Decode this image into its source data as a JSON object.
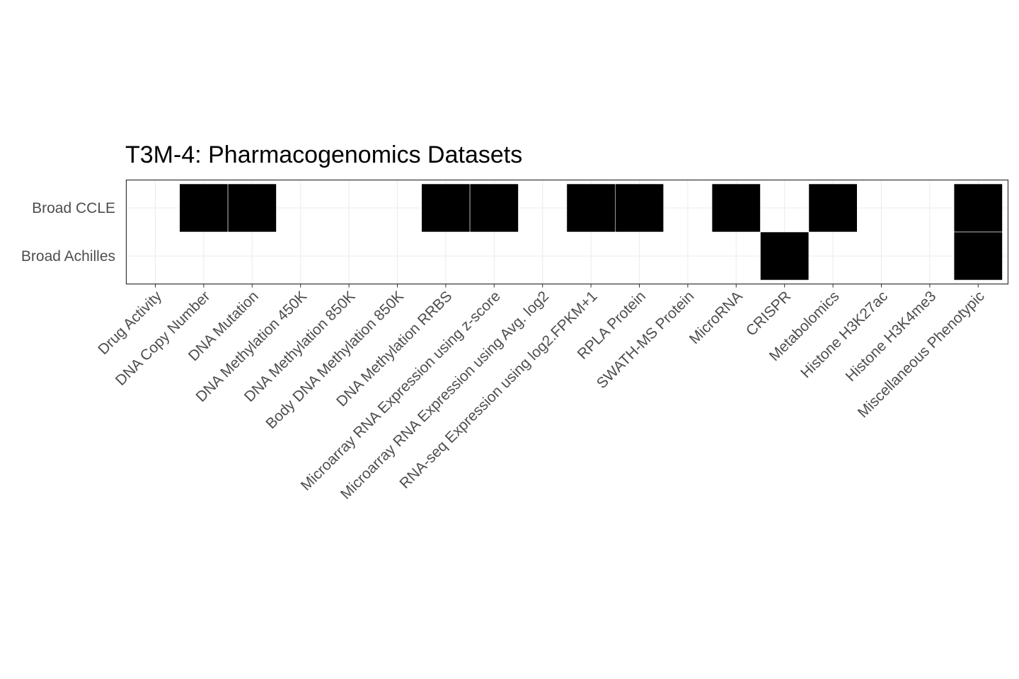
{
  "chart_data": {
    "type": "heatmap",
    "title": "T3M-4: Pharmacogenomics Datasets",
    "xlabel": "",
    "ylabel": "",
    "x": [
      "Drug Activity",
      "DNA Copy Number",
      "DNA Mutation",
      "DNA Methylation 450K",
      "DNA Methylation 850K",
      "Body DNA Methylation 850K",
      "DNA Methylation RRBS",
      "Microarray RNA Expression using z-score",
      "Microarray RNA Expression using Avg. log2",
      "RNA-seq Expression using log2.FPKM+1",
      "RPLA Protein",
      "SWATH-MS Protein",
      "MicroRNA",
      "CRISPR",
      "Metabolomics",
      "Histone H3K27ac",
      "Histone H3K4me3",
      "Miscellaneous Phenotypic"
    ],
    "y": [
      "Broad CCLE",
      "Broad Achilles"
    ],
    "values": [
      [
        0,
        1,
        1,
        0,
        0,
        0,
        1,
        1,
        0,
        1,
        1,
        0,
        1,
        0,
        1,
        0,
        0,
        1
      ],
      [
        0,
        0,
        0,
        0,
        0,
        0,
        0,
        0,
        0,
        0,
        0,
        0,
        0,
        1,
        0,
        0,
        0,
        1
      ]
    ],
    "legend": "none",
    "grid": true,
    "colors": {
      "present": "#000000",
      "absent": "#ffffff",
      "grid": "#ebebeb",
      "panel_border": "#333333"
    }
  }
}
